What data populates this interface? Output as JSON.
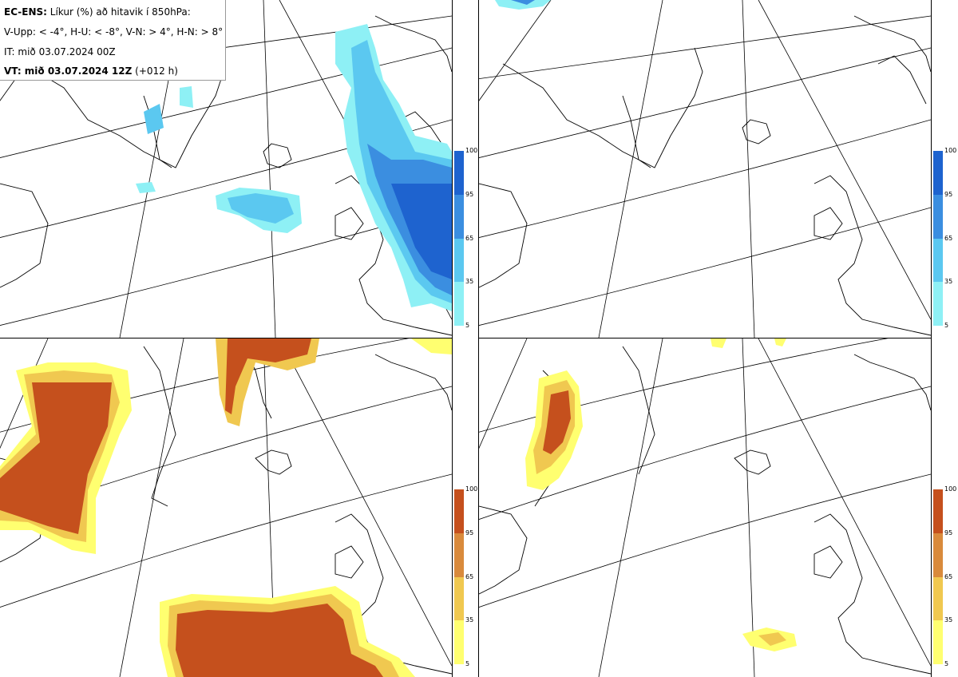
{
  "info": {
    "model_label": "EC-ENS:",
    "product": "Líkur (%) að hitavik í 850hPa:",
    "thresholds": "V-Upp: < -4°, H-U: < -8°, V-N: > 4°, H-N: > 8°",
    "initial_time": "IT: mið 03.07.2024 00Z",
    "valid_label": "VT: mið 03.07.2024 12Z",
    "lead_time": "(+012 h)"
  },
  "panels": [
    {
      "id": "top-left",
      "field": "cold-4",
      "palette": "blue"
    },
    {
      "id": "top-right",
      "field": "cold-8",
      "palette": "blue"
    },
    {
      "id": "bottom-left",
      "field": "warm+4",
      "palette": "orange"
    },
    {
      "id": "bottom-right",
      "field": "warm+8",
      "palette": "orange"
    }
  ],
  "colorbar_blue": {
    "ticks": [
      "100",
      "95",
      "65",
      "35",
      "5"
    ],
    "colors": [
      "#1e63cf",
      "#3b8ee0",
      "#5bc8f0",
      "#8ef0f5"
    ]
  },
  "colorbar_orange": {
    "ticks": [
      "100",
      "95",
      "65",
      "35",
      "5"
    ],
    "colors": [
      "#c5501d",
      "#d98a3c",
      "#f0c850",
      "#ffff70"
    ]
  }
}
